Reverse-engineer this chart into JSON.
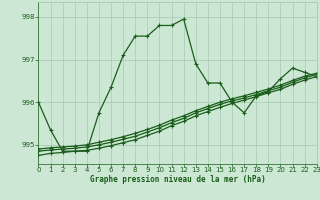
{
  "x": [
    0,
    1,
    2,
    3,
    4,
    5,
    6,
    7,
    8,
    9,
    10,
    11,
    12,
    13,
    14,
    15,
    16,
    17,
    18,
    19,
    20,
    21,
    22,
    23
  ],
  "y_main": [
    996.0,
    995.35,
    994.85,
    994.85,
    994.85,
    995.75,
    996.35,
    997.1,
    997.55,
    997.55,
    997.8,
    997.8,
    997.95,
    996.9,
    996.45,
    996.45,
    996.0,
    995.75,
    996.15,
    996.25,
    996.55,
    996.8,
    996.7,
    996.6
  ],
  "y_trend1": [
    994.75,
    994.8,
    994.82,
    994.85,
    994.87,
    994.92,
    994.98,
    995.05,
    995.12,
    995.22,
    995.32,
    995.45,
    995.55,
    995.68,
    995.78,
    995.88,
    995.97,
    996.05,
    996.13,
    996.22,
    996.3,
    996.42,
    996.52,
    996.6
  ],
  "y_trend2": [
    994.85,
    994.88,
    994.9,
    994.92,
    994.95,
    995.0,
    995.06,
    995.13,
    995.2,
    995.3,
    995.4,
    995.52,
    995.62,
    995.75,
    995.85,
    995.95,
    996.03,
    996.1,
    996.18,
    996.27,
    996.35,
    996.47,
    996.57,
    996.65
  ],
  "y_trend3": [
    994.9,
    994.93,
    994.95,
    994.97,
    995.0,
    995.06,
    995.12,
    995.19,
    995.27,
    995.36,
    995.46,
    995.58,
    995.68,
    995.8,
    995.9,
    996.0,
    996.08,
    996.15,
    996.23,
    996.31,
    996.4,
    996.51,
    996.61,
    996.68
  ],
  "ylim": [
    994.55,
    998.35
  ],
  "xlim": [
    0,
    23
  ],
  "yticks": [
    995,
    996,
    997,
    998
  ],
  "xticks": [
    0,
    1,
    2,
    3,
    4,
    5,
    6,
    7,
    8,
    9,
    10,
    11,
    12,
    13,
    14,
    15,
    16,
    17,
    18,
    19,
    20,
    21,
    22,
    23
  ],
  "xlabel": "Graphe pression niveau de la mer (hPa)",
  "line_color": "#1a5c1a",
  "bg_color": "#cce8d4",
  "grid_color": "#9ec4a8",
  "text_color": "#1a5c1a",
  "marker": "+",
  "marker_size": 3.5,
  "line_width": 0.9
}
